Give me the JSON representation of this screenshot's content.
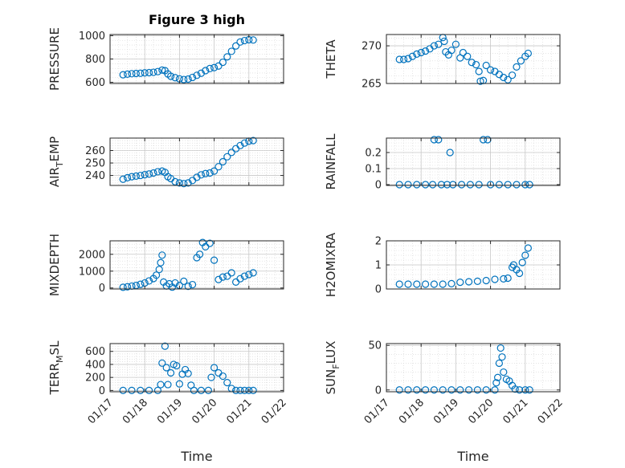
{
  "figure": {
    "title": "Figure 3 high",
    "xlabel_time": "Time",
    "marker_color": "#0072BD",
    "date_tick_labels": [
      "01/17",
      "01/18",
      "01/19",
      "01/20",
      "01/21",
      "01/22"
    ]
  },
  "chart_data": [
    {
      "type": "scatter",
      "title": "Figure 3 high",
      "ylabel": "PRESSURE",
      "xlabel": "",
      "xlim": [
        "01/17",
        "01/22"
      ],
      "ylim": [
        590,
        1010
      ],
      "yticks": [
        600,
        800,
        1000
      ],
      "grid": true,
      "points": [
        {
          "x": "01/17 09:00",
          "y": 665
        },
        {
          "x": "01/17 12:00",
          "y": 670
        },
        {
          "x": "01/17 15:00",
          "y": 674
        },
        {
          "x": "01/17 18:00",
          "y": 676
        },
        {
          "x": "01/17 21:00",
          "y": 678
        },
        {
          "x": "01/18 00:00",
          "y": 681
        },
        {
          "x": "01/18 03:00",
          "y": 683
        },
        {
          "x": "01/18 06:00",
          "y": 686
        },
        {
          "x": "01/18 09:00",
          "y": 692
        },
        {
          "x": "01/18 12:00",
          "y": 705
        },
        {
          "x": "01/18 14:00",
          "y": 700
        },
        {
          "x": "01/18 16:00",
          "y": 672
        },
        {
          "x": "01/18 18:00",
          "y": 652
        },
        {
          "x": "01/18 21:00",
          "y": 640
        },
        {
          "x": "01/19 00:00",
          "y": 630
        },
        {
          "x": "01/19 03:00",
          "y": 624
        },
        {
          "x": "01/19 06:00",
          "y": 628
        },
        {
          "x": "01/19 09:00",
          "y": 642
        },
        {
          "x": "01/19 12:00",
          "y": 660
        },
        {
          "x": "01/19 15:00",
          "y": 678
        },
        {
          "x": "01/19 18:00",
          "y": 700
        },
        {
          "x": "01/19 21:00",
          "y": 718
        },
        {
          "x": "01/20 00:00",
          "y": 726
        },
        {
          "x": "01/20 03:00",
          "y": 740
        },
        {
          "x": "01/20 06:00",
          "y": 772
        },
        {
          "x": "01/20 09:00",
          "y": 818
        },
        {
          "x": "01/20 12:00",
          "y": 866
        },
        {
          "x": "01/20 15:00",
          "y": 912
        },
        {
          "x": "01/20 18:00",
          "y": 946
        },
        {
          "x": "01/20 21:00",
          "y": 958
        },
        {
          "x": "01/21 00:00",
          "y": 965
        },
        {
          "x": "01/21 03:00",
          "y": 963
        }
      ]
    },
    {
      "type": "scatter",
      "title": "",
      "ylabel": "THETA",
      "xlabel": "",
      "xlim": [
        "01/17",
        "01/22"
      ],
      "ylim": [
        265,
        271.5
      ],
      "yticks": [
        265,
        270
      ],
      "grid": true,
      "points": [
        {
          "x": "01/17 09:00",
          "y": 268.2
        },
        {
          "x": "01/17 12:00",
          "y": 268.2
        },
        {
          "x": "01/17 15:00",
          "y": 268.3
        },
        {
          "x": "01/17 18:00",
          "y": 268.6
        },
        {
          "x": "01/17 21:00",
          "y": 268.9
        },
        {
          "x": "01/18 00:00",
          "y": 269.1
        },
        {
          "x": "01/18 03:00",
          "y": 269.3
        },
        {
          "x": "01/18 06:00",
          "y": 269.6
        },
        {
          "x": "01/18 09:00",
          "y": 270.0
        },
        {
          "x": "01/18 12:00",
          "y": 270.2
        },
        {
          "x": "01/18 15:00",
          "y": 271.1
        },
        {
          "x": "01/18 16:00",
          "y": 270.6
        },
        {
          "x": "01/18 17:00",
          "y": 269.2
        },
        {
          "x": "01/18 19:00",
          "y": 268.8
        },
        {
          "x": "01/18 21:00",
          "y": 269.4
        },
        {
          "x": "01/19 00:00",
          "y": 270.2
        },
        {
          "x": "01/19 03:00",
          "y": 268.4
        },
        {
          "x": "01/19 05:00",
          "y": 269.1
        },
        {
          "x": "01/19 08:00",
          "y": 268.6
        },
        {
          "x": "01/19 11:00",
          "y": 267.8
        },
        {
          "x": "01/19 14:00",
          "y": 267.5
        },
        {
          "x": "01/19 16:00",
          "y": 266.6
        },
        {
          "x": "01/19 17:00",
          "y": 265.3
        },
        {
          "x": "01/19 19:00",
          "y": 265.4
        },
        {
          "x": "01/19 21:00",
          "y": 267.4
        },
        {
          "x": "01/20 00:00",
          "y": 266.8
        },
        {
          "x": "01/20 03:00",
          "y": 266.6
        },
        {
          "x": "01/20 06:00",
          "y": 266.2
        },
        {
          "x": "01/20 09:00",
          "y": 265.8
        },
        {
          "x": "01/20 12:00",
          "y": 265.5
        },
        {
          "x": "01/20 15:00",
          "y": 266.1
        },
        {
          "x": "01/20 18:00",
          "y": 267.2
        },
        {
          "x": "01/20 21:00",
          "y": 268.0
        },
        {
          "x": "01/21 00:00",
          "y": 268.6
        },
        {
          "x": "01/21 02:00",
          "y": 269.0
        }
      ]
    },
    {
      "type": "scatter",
      "title": "",
      "ylabel": "AIR_TEMP",
      "xlabel": "",
      "xlim": [
        "01/17",
        "01/22"
      ],
      "ylim": [
        232,
        270
      ],
      "yticks": [
        240,
        250,
        260
      ],
      "grid": true,
      "points": [
        {
          "x": "01/17 09:00",
          "y": 237.0
        },
        {
          "x": "01/17 12:00",
          "y": 238.2
        },
        {
          "x": "01/17 15:00",
          "y": 239.0
        },
        {
          "x": "01/17 18:00",
          "y": 239.5
        },
        {
          "x": "01/17 21:00",
          "y": 240.0
        },
        {
          "x": "01/18 00:00",
          "y": 240.6
        },
        {
          "x": "01/18 03:00",
          "y": 241.2
        },
        {
          "x": "01/18 06:00",
          "y": 242.0
        },
        {
          "x": "01/18 09:00",
          "y": 243.0
        },
        {
          "x": "01/18 12:00",
          "y": 243.5
        },
        {
          "x": "01/18 14:00",
          "y": 242.5
        },
        {
          "x": "01/18 16:00",
          "y": 239.0
        },
        {
          "x": "01/18 18:00",
          "y": 237.5
        },
        {
          "x": "01/18 21:00",
          "y": 235.0
        },
        {
          "x": "01/19 00:00",
          "y": 234.0
        },
        {
          "x": "01/19 03:00",
          "y": 233.5
        },
        {
          "x": "01/19 06:00",
          "y": 234.0
        },
        {
          "x": "01/19 09:00",
          "y": 236.0
        },
        {
          "x": "01/19 12:00",
          "y": 238.5
        },
        {
          "x": "01/19 15:00",
          "y": 240.5
        },
        {
          "x": "01/19 18:00",
          "y": 241.5
        },
        {
          "x": "01/19 21:00",
          "y": 242.0
        },
        {
          "x": "01/20 00:00",
          "y": 243.5
        },
        {
          "x": "01/20 03:00",
          "y": 247.0
        },
        {
          "x": "01/20 06:00",
          "y": 251.0
        },
        {
          "x": "01/20 09:00",
          "y": 255.0
        },
        {
          "x": "01/20 12:00",
          "y": 258.5
        },
        {
          "x": "01/20 15:00",
          "y": 261.5
        },
        {
          "x": "01/20 18:00",
          "y": 264.0
        },
        {
          "x": "01/20 21:00",
          "y": 266.0
        },
        {
          "x": "01/21 00:00",
          "y": 267.5
        },
        {
          "x": "01/21 03:00",
          "y": 268.0
        }
      ]
    },
    {
      "type": "scatter",
      "title": "",
      "ylabel": "RAINFALL",
      "xlabel": "",
      "xlim": [
        "01/17",
        "01/22"
      ],
      "ylim": [
        -0.005,
        0.29
      ],
      "yticks": [
        0,
        0.1,
        0.2
      ],
      "grid": true,
      "points": [
        {
          "x": "01/17 09:00",
          "y": 0
        },
        {
          "x": "01/17 15:00",
          "y": 0
        },
        {
          "x": "01/17 21:00",
          "y": 0
        },
        {
          "x": "01/18 03:00",
          "y": 0
        },
        {
          "x": "01/18 08:00",
          "y": 0
        },
        {
          "x": "01/18 09:00",
          "y": 0.28
        },
        {
          "x": "01/18 12:00",
          "y": 0.28
        },
        {
          "x": "01/18 14:00",
          "y": 0
        },
        {
          "x": "01/18 18:00",
          "y": 0
        },
        {
          "x": "01/18 20:00",
          "y": 0.2
        },
        {
          "x": "01/18 22:00",
          "y": 0
        },
        {
          "x": "01/19 04:00",
          "y": 0
        },
        {
          "x": "01/19 10:00",
          "y": 0
        },
        {
          "x": "01/19 16:00",
          "y": 0
        },
        {
          "x": "01/19 19:00",
          "y": 0.28
        },
        {
          "x": "01/19 22:00",
          "y": 0.28
        },
        {
          "x": "01/20 00:00",
          "y": 0
        },
        {
          "x": "01/20 06:00",
          "y": 0
        },
        {
          "x": "01/20 12:00",
          "y": 0
        },
        {
          "x": "01/20 18:00",
          "y": 0
        },
        {
          "x": "01/21 00:00",
          "y": 0
        },
        {
          "x": "01/21 03:00",
          "y": 0
        }
      ]
    },
    {
      "type": "scatter",
      "title": "",
      "ylabel": "MIXDEPTH",
      "xlabel": "",
      "xlim": [
        "01/17",
        "01/22"
      ],
      "ylim": [
        -60,
        2800
      ],
      "yticks": [
        0,
        1000,
        2000
      ],
      "grid": true,
      "points": [
        {
          "x": "01/17 09:00",
          "y": 40
        },
        {
          "x": "01/17 12:00",
          "y": 70
        },
        {
          "x": "01/17 15:00",
          "y": 110
        },
        {
          "x": "01/17 18:00",
          "y": 150
        },
        {
          "x": "01/17 21:00",
          "y": 220
        },
        {
          "x": "01/18 00:00",
          "y": 300
        },
        {
          "x": "01/18 03:00",
          "y": 420
        },
        {
          "x": "01/18 06:00",
          "y": 560
        },
        {
          "x": "01/18 08:00",
          "y": 760
        },
        {
          "x": "01/18 10:00",
          "y": 1100
        },
        {
          "x": "01/18 11:00",
          "y": 1500
        },
        {
          "x": "01/18 12:00",
          "y": 1950
        },
        {
          "x": "01/18 13:00",
          "y": 350
        },
        {
          "x": "01/18 15:00",
          "y": 120
        },
        {
          "x": "01/18 17:00",
          "y": 250
        },
        {
          "x": "01/18 19:00",
          "y": 50
        },
        {
          "x": "01/18 21:00",
          "y": 300
        },
        {
          "x": "01/19 00:00",
          "y": 150
        },
        {
          "x": "01/19 03:00",
          "y": 400
        },
        {
          "x": "01/19 06:00",
          "y": 100
        },
        {
          "x": "01/19 09:00",
          "y": 200
        },
        {
          "x": "01/19 12:00",
          "y": 1800
        },
        {
          "x": "01/19 14:00",
          "y": 2000
        },
        {
          "x": "01/19 16:00",
          "y": 2700
        },
        {
          "x": "01/19 18:00",
          "y": 2450
        },
        {
          "x": "01/19 21:00",
          "y": 2650
        },
        {
          "x": "01/20 00:00",
          "y": 1650
        },
        {
          "x": "01/20 03:00",
          "y": 500
        },
        {
          "x": "01/20 06:00",
          "y": 650
        },
        {
          "x": "01/20 09:00",
          "y": 700
        },
        {
          "x": "01/20 12:00",
          "y": 900
        },
        {
          "x": "01/20 15:00",
          "y": 350
        },
        {
          "x": "01/20 18:00",
          "y": 550
        },
        {
          "x": "01/20 21:00",
          "y": 700
        },
        {
          "x": "01/21 00:00",
          "y": 800
        },
        {
          "x": "01/21 03:00",
          "y": 900
        }
      ]
    },
    {
      "type": "scatter",
      "title": "",
      "ylabel": "H2OMIXRA",
      "xlabel": "",
      "xlim": [
        "01/17",
        "01/22"
      ],
      "ylim": [
        0,
        2
      ],
      "yticks": [
        0,
        1,
        2
      ],
      "grid": true,
      "points": [
        {
          "x": "01/17 09:00",
          "y": 0.2
        },
        {
          "x": "01/17 15:00",
          "y": 0.2
        },
        {
          "x": "01/17 21:00",
          "y": 0.2
        },
        {
          "x": "01/18 03:00",
          "y": 0.2
        },
        {
          "x": "01/18 09:00",
          "y": 0.2
        },
        {
          "x": "01/18 15:00",
          "y": 0.2
        },
        {
          "x": "01/18 21:00",
          "y": 0.22
        },
        {
          "x": "01/19 03:00",
          "y": 0.28
        },
        {
          "x": "01/19 09:00",
          "y": 0.3
        },
        {
          "x": "01/19 15:00",
          "y": 0.32
        },
        {
          "x": "01/19 21:00",
          "y": 0.35
        },
        {
          "x": "01/20 03:00",
          "y": 0.4
        },
        {
          "x": "01/20 09:00",
          "y": 0.42
        },
        {
          "x": "01/20 12:00",
          "y": 0.45
        },
        {
          "x": "01/20 15:00",
          "y": 0.9
        },
        {
          "x": "01/20 16:00",
          "y": 1.0
        },
        {
          "x": "01/20 18:00",
          "y": 0.8
        },
        {
          "x": "01/20 20:00",
          "y": 0.65
        },
        {
          "x": "01/20 22:00",
          "y": 1.1
        },
        {
          "x": "01/21 00:00",
          "y": 1.4
        },
        {
          "x": "01/21 02:00",
          "y": 1.7
        }
      ]
    },
    {
      "type": "scatter",
      "title": "",
      "ylabel": "TERR_MSL",
      "xlabel": "Time",
      "xlim": [
        "01/17",
        "01/22"
      ],
      "ylim": [
        -20,
        720
      ],
      "yticks": [
        0,
        200,
        400,
        600
      ],
      "grid": true,
      "xticklabels": [
        "01/17",
        "01/18",
        "01/19",
        "01/20",
        "01/21",
        "01/22"
      ],
      "points": [
        {
          "x": "01/17 09:00",
          "y": 0
        },
        {
          "x": "01/17 15:00",
          "y": 0
        },
        {
          "x": "01/17 21:00",
          "y": 0
        },
        {
          "x": "01/18 03:00",
          "y": 0
        },
        {
          "x": "01/18 09:00",
          "y": 0
        },
        {
          "x": "01/18 11:00",
          "y": 90
        },
        {
          "x": "01/18 12:00",
          "y": 420
        },
        {
          "x": "01/18 14:00",
          "y": 680
        },
        {
          "x": "01/18 15:00",
          "y": 350
        },
        {
          "x": "01/18 16:00",
          "y": 90
        },
        {
          "x": "01/18 18:00",
          "y": 270
        },
        {
          "x": "01/18 20:00",
          "y": 400
        },
        {
          "x": "01/18 22:00",
          "y": 380
        },
        {
          "x": "01/19 00:00",
          "y": 100
        },
        {
          "x": "01/19 02:00",
          "y": 250
        },
        {
          "x": "01/19 04:00",
          "y": 320
        },
        {
          "x": "01/19 06:00",
          "y": 260
        },
        {
          "x": "01/19 08:00",
          "y": 80
        },
        {
          "x": "01/19 10:00",
          "y": 0
        },
        {
          "x": "01/19 15:00",
          "y": 0
        },
        {
          "x": "01/19 20:00",
          "y": 0
        },
        {
          "x": "01/19 22:00",
          "y": 200
        },
        {
          "x": "01/20 00:00",
          "y": 350
        },
        {
          "x": "01/20 03:00",
          "y": 270
        },
        {
          "x": "01/20 06:00",
          "y": 220
        },
        {
          "x": "01/20 09:00",
          "y": 120
        },
        {
          "x": "01/20 12:00",
          "y": 30
        },
        {
          "x": "01/20 15:00",
          "y": 0
        },
        {
          "x": "01/20 18:00",
          "y": 0
        },
        {
          "x": "01/20 21:00",
          "y": 0
        },
        {
          "x": "01/21 00:00",
          "y": 0
        },
        {
          "x": "01/21 03:00",
          "y": 0
        }
      ]
    },
    {
      "type": "scatter",
      "title": "",
      "ylabel": "SUN_FLUX",
      "xlabel": "Time",
      "xlim": [
        "01/17",
        "01/22"
      ],
      "ylim": [
        -2,
        52
      ],
      "yticks": [
        0,
        50
      ],
      "grid": true,
      "xticklabels": [
        "01/17",
        "01/18",
        "01/19",
        "01/20",
        "01/21",
        "01/22"
      ],
      "points": [
        {
          "x": "01/17 09:00",
          "y": 0
        },
        {
          "x": "01/17 15:00",
          "y": 0
        },
        {
          "x": "01/17 21:00",
          "y": 0
        },
        {
          "x": "01/18 03:00",
          "y": 0
        },
        {
          "x": "01/18 09:00",
          "y": 0
        },
        {
          "x": "01/18 15:00",
          "y": 0
        },
        {
          "x": "01/18 21:00",
          "y": 0
        },
        {
          "x": "01/19 03:00",
          "y": 0
        },
        {
          "x": "01/19 09:00",
          "y": 0
        },
        {
          "x": "01/19 15:00",
          "y": 0
        },
        {
          "x": "01/19 21:00",
          "y": 0
        },
        {
          "x": "01/20 03:00",
          "y": 0
        },
        {
          "x": "01/20 04:00",
          "y": 8
        },
        {
          "x": "01/20 05:00",
          "y": 14
        },
        {
          "x": "01/20 06:00",
          "y": 30
        },
        {
          "x": "01/20 07:00",
          "y": 47
        },
        {
          "x": "01/20 08:00",
          "y": 37
        },
        {
          "x": "01/20 09:00",
          "y": 20
        },
        {
          "x": "01/20 11:00",
          "y": 12
        },
        {
          "x": "01/20 13:00",
          "y": 10
        },
        {
          "x": "01/20 15:00",
          "y": 5
        },
        {
          "x": "01/20 17:00",
          "y": 1
        },
        {
          "x": "01/20 20:00",
          "y": 0
        },
        {
          "x": "01/21 00:00",
          "y": 0
        },
        {
          "x": "01/21 03:00",
          "y": 0
        }
      ]
    }
  ]
}
